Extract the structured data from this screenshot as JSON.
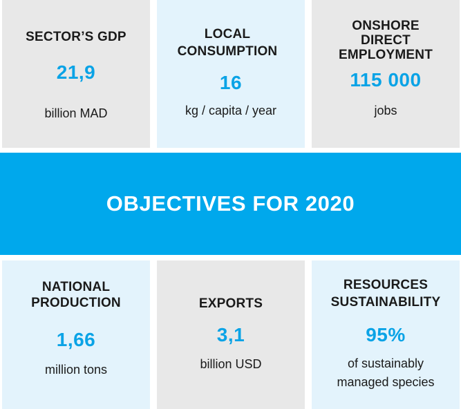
{
  "top_row": [
    {
      "title_lines": [
        "SECTOR’S GDP"
      ],
      "value": "21,9",
      "unit_lines": [
        "billion MAD"
      ]
    },
    {
      "title_lines": [
        "LOCAL",
        "CONSUMPTION"
      ],
      "value": "16",
      "unit_lines": [
        "kg / capita / year"
      ]
    },
    {
      "title_lines": [
        "ONSHORE",
        "DIRECT",
        "EMPLOYMENT"
      ],
      "value": "115 000",
      "unit_lines": [
        "jobs"
      ]
    }
  ],
  "banner": {
    "text": "OBJECTIVES FOR 2020",
    "color": "#00a8ec"
  },
  "bottom_row": [
    {
      "title_lines": [
        "NATIONAL",
        "PRODUCTION"
      ],
      "value": "1,66",
      "unit_lines": [
        "million tons"
      ]
    },
    {
      "title_lines": [
        "EXPORTS"
      ],
      "value": "3,1",
      "unit_lines": [
        "billion USD"
      ]
    },
    {
      "title_lines": [
        "RESOURCES",
        "SUSTAINABILITY"
      ],
      "value": "95%",
      "unit_lines": [
        "of sustainably",
        "managed species"
      ]
    }
  ],
  "colors": {
    "accent": "#0aa3e6",
    "grey_card": "#e8e8e8",
    "blue_card": "#e3f3fc"
  }
}
